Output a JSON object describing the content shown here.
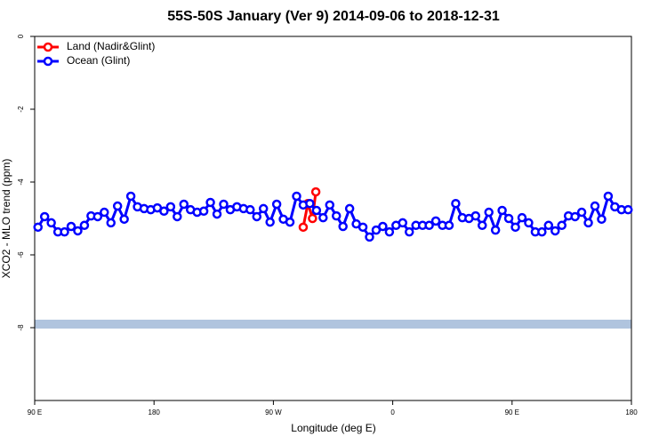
{
  "chart_data": {
    "type": "line",
    "title": "55S-50S January (Ver 9)   2014-09-06 to 2018-12-31",
    "x_label": "Longitude (deg E)",
    "y_label": "XCO2 - MLO trend (ppm)",
    "xlim": [
      90,
      540
    ],
    "ylim": [
      -10,
      0
    ],
    "xticks": [
      {
        "value": 90,
        "label": "90 E"
      },
      180,
      {
        "value": 270,
        "label": "90 W"
      },
      {
        "value": 360,
        "label": "0"
      },
      {
        "value": 450,
        "label": "90 E"
      },
      {
        "value": 540,
        "label": "180"
      }
    ],
    "yticks": [
      0,
      -2,
      -4,
      -6,
      -8
    ],
    "legend": "top-left",
    "series": [
      {
        "name": "Land (Nadir&Glint)",
        "color": "#ff0000",
        "x": [
          292.5,
          296,
          299.5,
          302
        ],
        "values": [
          -5.24,
          -4.59,
          -5.0,
          -4.27
        ]
      },
      {
        "name": "Ocean (Glint)",
        "color": "#0000ff",
        "x": [
          92.5,
          97.5,
          102.5,
          107.5,
          112.5,
          117.5,
          122.5,
          127.5,
          132.5,
          137.5,
          142.5,
          147.5,
          152.5,
          157.5,
          162.5,
          167.5,
          172.5,
          177.5,
          182.5,
          187.5,
          192.5,
          197.5,
          202.5,
          207.5,
          212.5,
          217.5,
          222.5,
          227.5,
          232.5,
          237.5,
          242.5,
          247.5,
          252.5,
          257.5,
          262.5,
          267.5,
          272.5,
          277.5,
          282.5,
          287.5,
          292.5,
          297.5,
          302.5,
          307.5,
          312.5,
          317.5,
          322.5,
          327.5,
          332.5,
          337.5,
          342.5,
          347.5,
          352.5,
          357.5,
          362.5,
          367.5,
          372.5,
          377.5,
          382.5,
          387.5,
          392.5,
          397.5,
          402.5,
          407.5,
          412.5,
          417.5,
          422.5,
          427.5,
          432.5,
          437.5,
          442.5,
          447.5,
          452.5,
          457.5,
          462.5,
          467.5,
          472.5,
          477.5,
          482.5,
          487.5,
          492.5,
          497.5,
          502.5,
          507.5,
          512.5,
          517.5,
          522.5,
          527.5,
          532.5,
          537.5
        ],
        "values": [
          -5.24,
          -4.95,
          -5.12,
          -5.37,
          -5.37,
          -5.22,
          -5.34,
          -5.19,
          -4.93,
          -4.95,
          -4.83,
          -5.12,
          -4.66,
          -5.02,
          -4.39,
          -4.68,
          -4.73,
          -4.76,
          -4.71,
          -4.8,
          -4.68,
          -4.95,
          -4.61,
          -4.76,
          -4.83,
          -4.8,
          -4.56,
          -4.88,
          -4.61,
          -4.76,
          -4.68,
          -4.73,
          -4.76,
          -4.95,
          -4.73,
          -5.1,
          -4.61,
          -5.02,
          -5.1,
          -4.39,
          -4.63,
          -4.59,
          -4.78,
          -4.98,
          -4.63,
          -4.93,
          -5.22,
          -4.73,
          -5.15,
          -5.24,
          -5.51,
          -5.32,
          -5.22,
          -5.37,
          -5.19,
          -5.12,
          -5.37,
          -5.19,
          -5.19,
          -5.19,
          -5.07,
          -5.19,
          -5.19,
          -4.59,
          -4.98,
          -5.0,
          -4.93,
          -5.19,
          -4.83,
          -5.32,
          -4.78,
          -5.0,
          -5.24,
          -4.98,
          -5.12,
          -5.37,
          -5.37,
          -5.19,
          -5.34,
          -5.19,
          -4.93,
          -4.95,
          -4.83,
          -5.12,
          -4.66,
          -5.02,
          -4.39,
          -4.68,
          -4.76,
          -4.76
        ]
      }
    ]
  }
}
